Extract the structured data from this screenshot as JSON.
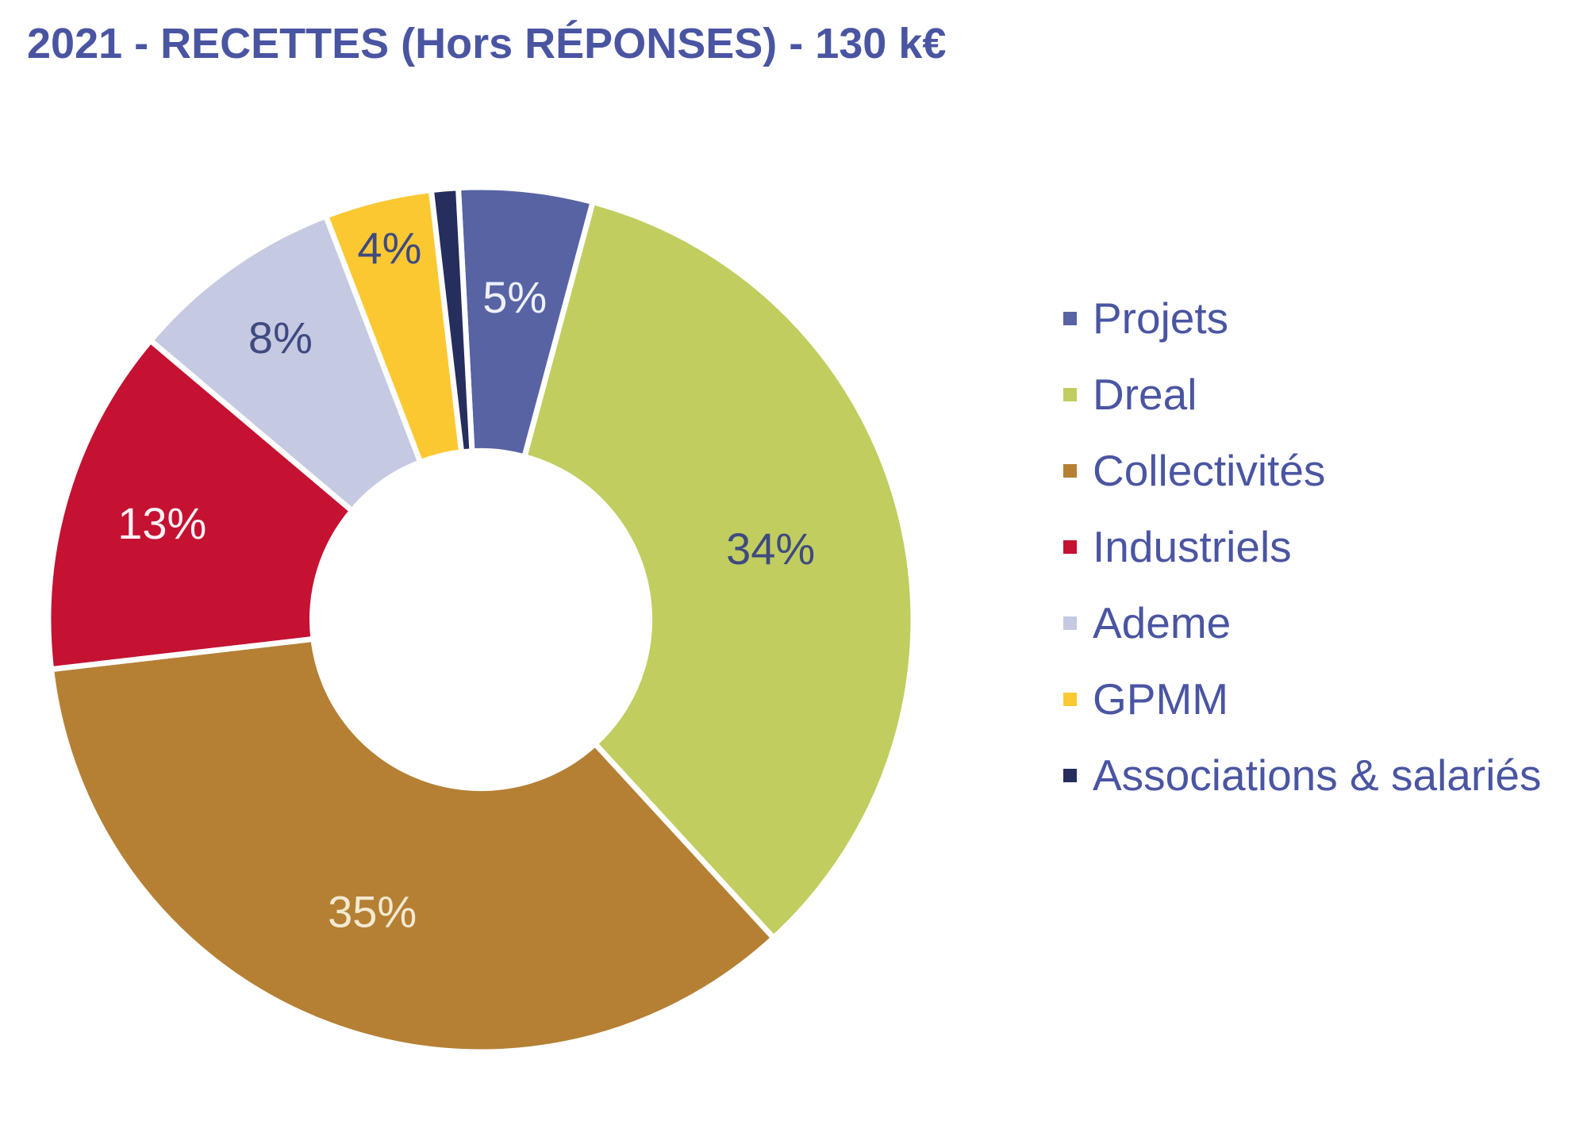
{
  "title": "2021 - RECETTES (Hors RÉPONSES) - 130 k€",
  "colors": {
    "background": "#ffffff",
    "title_text": "#4a55a2",
    "legend_text": "#4a55a2",
    "dark_label_text": "#3f4a80",
    "separator": "#ffffff"
  },
  "chart_data": {
    "type": "pie",
    "subtype": "donut",
    "title": "2021 - RECETTES (Hors RÉPONSES) - 130 k€",
    "year": "2021",
    "total": "130 k€",
    "categories": [
      "Projets",
      "Dreal",
      "Collectivités",
      "Industriels",
      "Ademe",
      "GPMM",
      "Associations & salariés"
    ],
    "values": [
      5,
      34,
      35,
      13,
      8,
      4,
      1
    ],
    "unit": "%",
    "data_labels": [
      "5%",
      "34%",
      "35%",
      "13%",
      "8%",
      "4%",
      ""
    ],
    "slice_colors": [
      "#5863a4",
      "#c1cd5f",
      "#b58034",
      "#c51132",
      "#c5cae2",
      "#fcc832",
      "#252e5c"
    ],
    "label_text_colors": [
      "#eef1fb",
      "#3f4a80",
      "#f3e9d2",
      "#fdf2f4",
      "#3f4a80",
      "#3f4a80",
      ""
    ],
    "label_radius_frac": [
      0.75,
      0.69,
      0.72,
      0.77,
      0.8,
      0.885,
      0
    ],
    "start_angle_deg": -3,
    "direction": "clockwise",
    "inner_radius_frac": 0.39,
    "grid": false,
    "legend_position": "right"
  }
}
